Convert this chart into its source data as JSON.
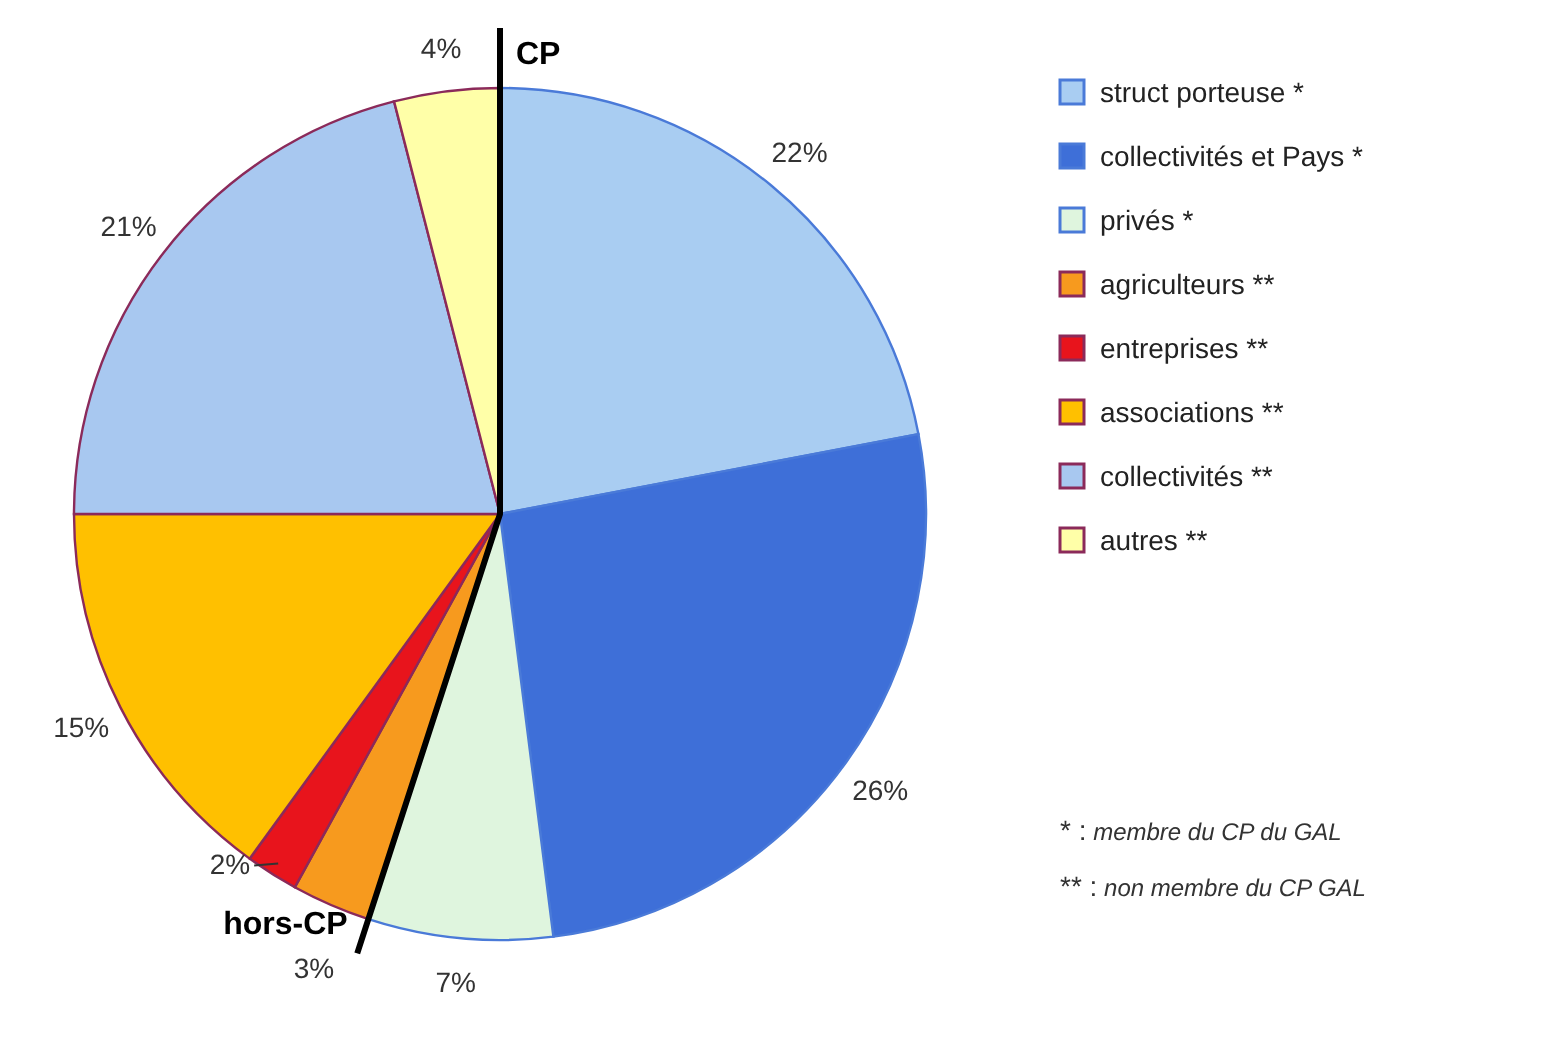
{
  "chart_data": {
    "type": "pie",
    "categories": [
      "struct porteuse *",
      "collectivités et Pays *",
      "privés *",
      "agriculteurs **",
      "entreprises **",
      "associations **",
      "collectivités **",
      "autres **"
    ],
    "values": [
      22,
      26,
      7,
      3,
      2,
      15,
      21,
      4
    ],
    "value_labels": [
      "22%",
      "26%",
      "7%",
      "3%",
      "2%",
      "15%",
      "21%",
      "4%"
    ],
    "colors": [
      "#a9cdf2",
      "#3e6fd8",
      "#dff5de",
      "#f79a1e",
      "#e8141c",
      "#ffc000",
      "#a8c8f0",
      "#ffffa8"
    ],
    "legend": "right",
    "annotations": [
      "CP",
      "hors-CP",
      "* :  membre du CP du GAL",
      "** :  non membre du CP GAL"
    ]
  }
}
